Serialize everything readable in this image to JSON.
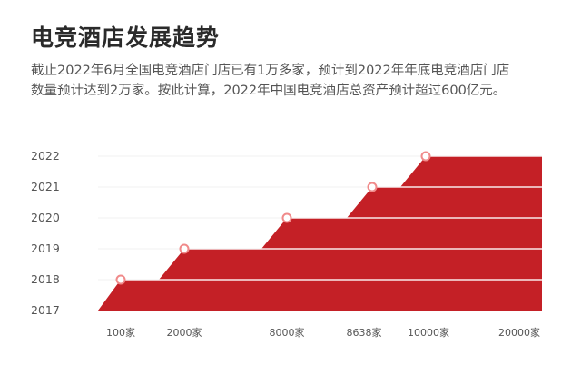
{
  "title": "电竞酒店发展趋势",
  "description": [
    "截止2022年6月全国电竞酒店门店已有1万多家，预计到2022年年底电竞酒店门店",
    "数量预计达到2万家。按此计算，2022年中国电竞酒店总资产预计超过600亿元。"
  ],
  "colors": {
    "area": "#c42026",
    "marker_stroke": "#f08a8a",
    "grid": "#c8c8c8"
  },
  "chart_data": {
    "type": "area",
    "y_categories": [
      "2017",
      "2018",
      "2019",
      "2020",
      "2021",
      "2022"
    ],
    "points": [
      {
        "year": "2018",
        "label": "100家"
      },
      {
        "year": "2019",
        "label": "2000家"
      },
      {
        "year": "2020",
        "label": "8000家"
      },
      {
        "year": "2021",
        "label": "8638家"
      },
      {
        "year": "2022",
        "label": "10000家"
      }
    ],
    "x_labels": [
      "100家",
      "2000家",
      "8000家",
      "8638家",
      "10000家",
      "20000家"
    ],
    "grid": true
  }
}
